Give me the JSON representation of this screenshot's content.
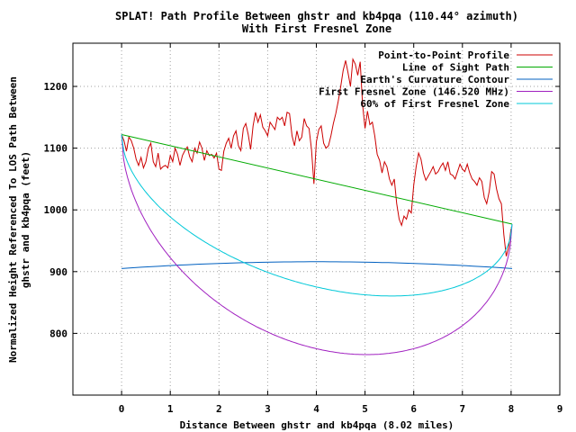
{
  "chart_data": {
    "type": "line",
    "title": "SPLAT! Path Profile Between ghstr and kb4pqa (110.44° azimuth)",
    "subtitle": "With First Fresnel Zone",
    "xlabel": "Distance Between ghstr and kb4pqa (8.02 miles)",
    "ylabel_line1": "Normalized Height Referenced To LOS Path Between",
    "ylabel_line2": "ghstr and kb4pqa (feet)",
    "xlim": [
      -1,
      9
    ],
    "ylim": [
      700,
      1270
    ],
    "xticks": [
      0,
      1,
      2,
      3,
      4,
      5,
      6,
      7,
      8,
      9
    ],
    "xtick_labels": [
      "0",
      "1",
      "2",
      "3",
      "4",
      "5",
      "6",
      "7",
      "8",
      "9"
    ],
    "yticks": [
      800,
      900,
      1000,
      1100,
      1200
    ],
    "ytick_labels": [
      "800",
      "900",
      "1000",
      "1100",
      "1200"
    ],
    "grid": true,
    "legend_position": "top-right",
    "series": [
      {
        "name": "Point-to-Point Profile",
        "color": "#cc0000",
        "kind": "points",
        "x": [
          0,
          0.05,
          0.1,
          0.15,
          0.2,
          0.25,
          0.3,
          0.35,
          0.4,
          0.45,
          0.5,
          0.55,
          0.6,
          0.65,
          0.7,
          0.75,
          0.8,
          0.85,
          0.9,
          0.95,
          1.0,
          1.05,
          1.1,
          1.15,
          1.2,
          1.25,
          1.3,
          1.35,
          1.4,
          1.45,
          1.5,
          1.55,
          1.6,
          1.65,
          1.7,
          1.75,
          1.8,
          1.85,
          1.9,
          1.95,
          2.0,
          2.05,
          2.1,
          2.15,
          2.2,
          2.25,
          2.3,
          2.35,
          2.4,
          2.45,
          2.5,
          2.55,
          2.6,
          2.65,
          2.7,
          2.75,
          2.8,
          2.85,
          2.9,
          2.95,
          3.0,
          3.05,
          3.1,
          3.15,
          3.2,
          3.25,
          3.3,
          3.35,
          3.4,
          3.45,
          3.5,
          3.55,
          3.6,
          3.65,
          3.7,
          3.75,
          3.8,
          3.85,
          3.9,
          3.95,
          4.0,
          4.05,
          4.1,
          4.15,
          4.2,
          4.25,
          4.3,
          4.35,
          4.4,
          4.45,
          4.5,
          4.55,
          4.6,
          4.65,
          4.7,
          4.75,
          4.8,
          4.85,
          4.9,
          4.95,
          5.0,
          5.05,
          5.1,
          5.15,
          5.2,
          5.25,
          5.3,
          5.35,
          5.4,
          5.45,
          5.5,
          5.55,
          5.6,
          5.65,
          5.7,
          5.75,
          5.8,
          5.85,
          5.9,
          5.95,
          6.0,
          6.05,
          6.1,
          6.15,
          6.2,
          6.25,
          6.3,
          6.35,
          6.4,
          6.45,
          6.5,
          6.55,
          6.6,
          6.65,
          6.7,
          6.75,
          6.8,
          6.85,
          6.9,
          6.95,
          7.0,
          7.05,
          7.1,
          7.15,
          7.2,
          7.25,
          7.3,
          7.35,
          7.4,
          7.45,
          7.5,
          7.55,
          7.6,
          7.65,
          7.7,
          7.75,
          7.8,
          7.85,
          7.9,
          7.95,
          8.0
        ],
        "y": [
          1122,
          1112,
          1095,
          1118,
          1112,
          1100,
          1082,
          1072,
          1085,
          1068,
          1078,
          1100,
          1108,
          1078,
          1070,
          1092,
          1066,
          1070,
          1072,
          1068,
          1088,
          1078,
          1100,
          1090,
          1072,
          1088,
          1096,
          1102,
          1086,
          1078,
          1100,
          1092,
          1110,
          1100,
          1080,
          1096,
          1088,
          1090,
          1084,
          1092,
          1066,
          1064,
          1095,
          1108,
          1116,
          1100,
          1120,
          1128,
          1104,
          1096,
          1132,
          1140,
          1122,
          1098,
          1136,
          1158,
          1142,
          1154,
          1134,
          1128,
          1120,
          1142,
          1136,
          1130,
          1150,
          1146,
          1150,
          1136,
          1158,
          1156,
          1120,
          1104,
          1128,
          1112,
          1118,
          1148,
          1136,
          1132,
          1098,
          1042,
          1110,
          1130,
          1136,
          1108,
          1100,
          1104,
          1120,
          1140,
          1156,
          1176,
          1200,
          1226,
          1242,
          1222,
          1200,
          1244,
          1236,
          1218,
          1240,
          1170,
          1132,
          1160,
          1138,
          1142,
          1120,
          1090,
          1080,
          1060,
          1078,
          1070,
          1050,
          1040,
          1050,
          1010,
          985,
          975,
          990,
          985,
          1000,
          995,
          1040,
          1070,
          1092,
          1082,
          1060,
          1048,
          1055,
          1062,
          1070,
          1058,
          1062,
          1070,
          1076,
          1064,
          1078,
          1058,
          1056,
          1050,
          1062,
          1074,
          1066,
          1062,
          1074,
          1060,
          1050,
          1046,
          1040,
          1052,
          1046,
          1020,
          1010,
          1030,
          1062,
          1058,
          1034,
          1018,
          1010,
          960,
          925,
          940,
          970
        ]
      },
      {
        "name": "Line of Sight Path",
        "color": "#00aa00",
        "kind": "line",
        "x": [
          0,
          8.02
        ],
        "y": [
          1122,
          977
        ]
      },
      {
        "name": "Earth's Curvature Contour",
        "color": "#0060c0",
        "kind": "curvature",
        "x": [
          0,
          8.02
        ],
        "y_end": 905,
        "y_mid": 916
      },
      {
        "name": "First Fresnel Zone (146.520 MHz)",
        "color": "#a020c0",
        "kind": "fresnel",
        "fraction": 1.0,
        "min_value": 775
      },
      {
        "name": "60% of First Fresnel Zone",
        "color": "#00c8d8",
        "kind": "fresnel",
        "fraction": 0.6,
        "min_value": 875
      }
    ]
  }
}
